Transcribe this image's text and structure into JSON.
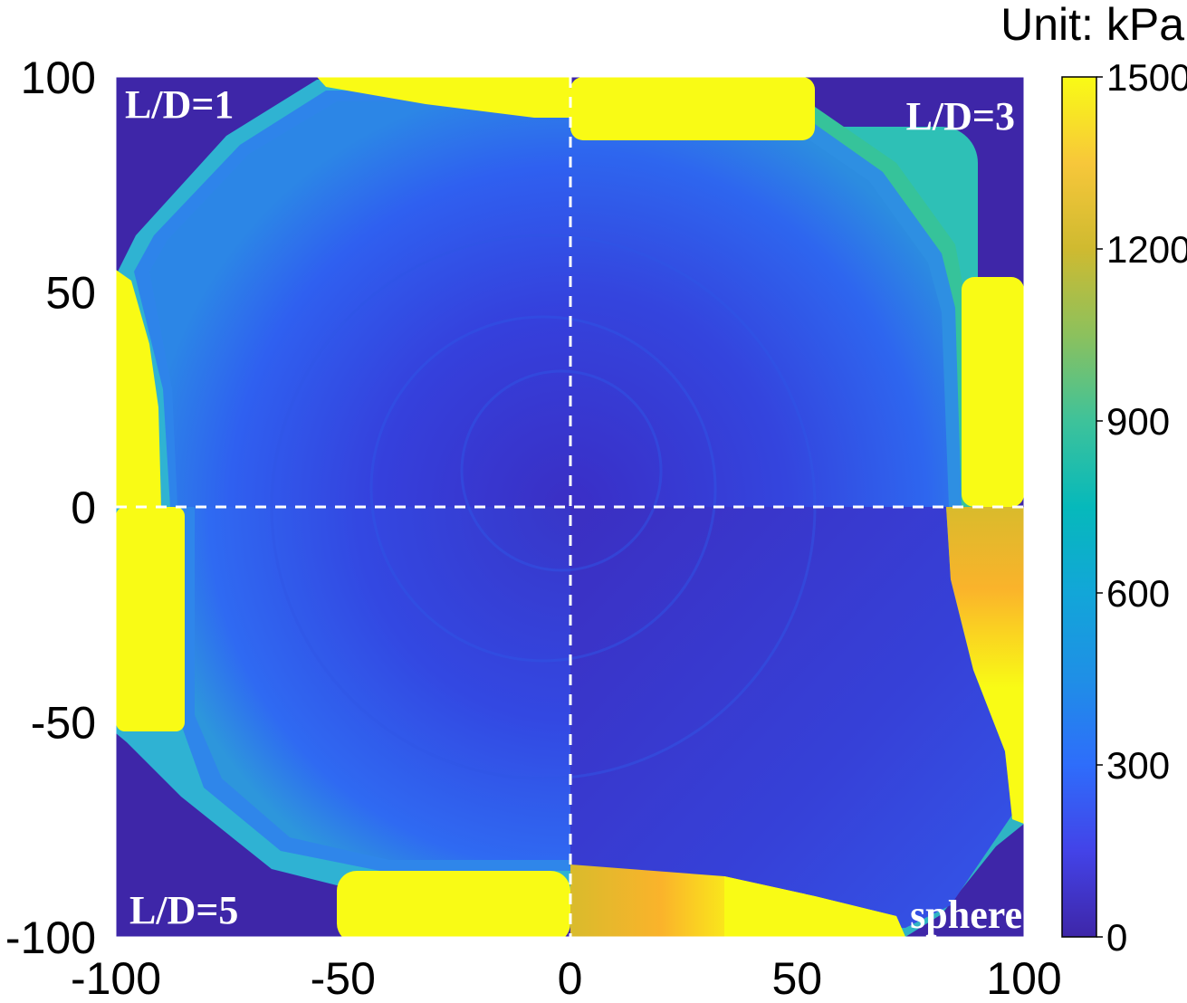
{
  "chart_data": {
    "type": "heatmap",
    "title": "",
    "xlabel": "",
    "ylabel": "",
    "xlim": [
      -100,
      100
    ],
    "ylim": [
      -100,
      100
    ],
    "x_ticks": [
      "-100",
      "-50",
      "0",
      "50",
      "100"
    ],
    "y_ticks": [
      "100",
      "50",
      "0",
      "-50",
      "-100"
    ],
    "colorbar": {
      "title": "Unit: kPa",
      "range": [
        0,
        1500
      ],
      "ticks": [
        "0",
        "300",
        "600",
        "900",
        "1200",
        "1500"
      ],
      "colormap": "parula"
    },
    "divider_lines": "dashed white at x=0 and y=0",
    "quadrant_labels": {
      "top_left": "L/D=1",
      "top_right": "L/D=3",
      "bottom_left": "L/D=5",
      "bottom_right": "sphere"
    }
  },
  "colors": {
    "background_low": "#3e26a8",
    "field_mid": "#2f5ef0",
    "ring": "#2fb1d8",
    "high": "#f9fb15",
    "orange": "#fab32b",
    "divider": "#ffffff"
  }
}
